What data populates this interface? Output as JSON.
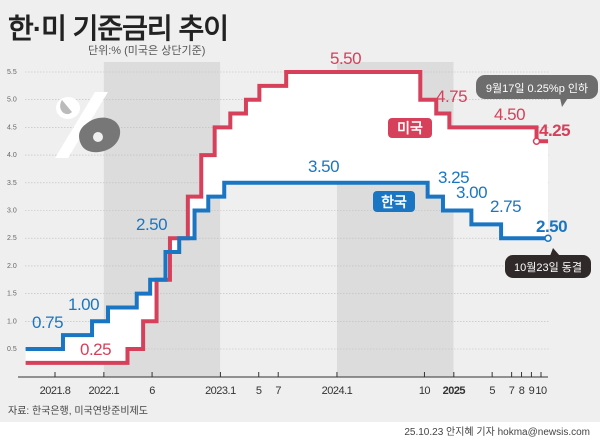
{
  "title": "한·미 기준금리 추이",
  "subtitle": "단위:% (미국은 상단기준)",
  "source": "자료: 한국은행, 미국연방준비제도",
  "credit": "25.10.23 안지혜 기자 hokma@newsis.com",
  "decor_icon": "percent-icon",
  "colors": {
    "korea": "#1a76c2",
    "us": "#d6405a",
    "background": "#efefef",
    "shade": "#dcdcdc"
  },
  "chart_data": {
    "type": "line",
    "step": true,
    "ylim": [
      0,
      5.5
    ],
    "yticks": [
      "0.5",
      "1.0",
      "1.5",
      "2.0",
      "2.5",
      "3.0",
      "3.5",
      "4.0",
      "4.5",
      "5.0",
      "5.5"
    ],
    "xticks": [
      {
        "label": "2021.8",
        "date": "2021-08-01"
      },
      {
        "label": "2022.1",
        "date": "2022-01-01"
      },
      {
        "label": "6",
        "date": "2022-06-01"
      },
      {
        "label": "2023.1",
        "date": "2023-01-01"
      },
      {
        "label": "5",
        "date": "2023-05-01"
      },
      {
        "label": "7",
        "date": "2023-07-01"
      },
      {
        "label": "2024.1",
        "date": "2024-01-01"
      },
      {
        "label": "10",
        "date": "2024-10-01"
      },
      {
        "label": "2025",
        "date": "2025-01-01",
        "bold": true
      },
      {
        "label": "5",
        "date": "2025-05-01"
      },
      {
        "label": "7",
        "date": "2025-07-01"
      },
      {
        "label": "8",
        "date": "2025-08-01"
      },
      {
        "label": "9",
        "date": "2025-09-01"
      },
      {
        "label": "10",
        "date": "2025-10-01"
      }
    ],
    "shaded_years": [
      [
        "2022-01-01",
        "2022-12-31"
      ],
      [
        "2024-01-01",
        "2024-12-31"
      ]
    ],
    "grid": true,
    "series": [
      {
        "name": "미국",
        "color": "#d6405a",
        "points": [
          [
            "2021-05-01",
            0.25
          ],
          [
            "2022-03-16",
            0.5
          ],
          [
            "2022-05-04",
            1.0
          ],
          [
            "2022-06-15",
            1.75
          ],
          [
            "2022-07-27",
            2.5
          ],
          [
            "2022-09-21",
            3.25
          ],
          [
            "2022-11-02",
            4.0
          ],
          [
            "2022-12-14",
            4.5
          ],
          [
            "2023-02-01",
            4.75
          ],
          [
            "2023-03-22",
            5.0
          ],
          [
            "2023-05-03",
            5.25
          ],
          [
            "2023-07-26",
            5.5
          ],
          [
            "2024-09-18",
            5.0
          ],
          [
            "2024-11-07",
            4.75
          ],
          [
            "2024-12-18",
            4.5
          ],
          [
            "2025-09-17",
            4.25
          ],
          [
            "2025-10-23",
            4.25
          ]
        ]
      },
      {
        "name": "한국",
        "color": "#1a76c2",
        "points": [
          [
            "2021-05-01",
            0.5
          ],
          [
            "2021-08-26",
            0.75
          ],
          [
            "2021-11-25",
            1.0
          ],
          [
            "2022-01-14",
            1.25
          ],
          [
            "2022-04-14",
            1.5
          ],
          [
            "2022-05-26",
            1.75
          ],
          [
            "2022-07-13",
            2.25
          ],
          [
            "2022-08-25",
            2.5
          ],
          [
            "2022-10-12",
            3.0
          ],
          [
            "2022-11-24",
            3.25
          ],
          [
            "2023-01-13",
            3.5
          ],
          [
            "2024-10-11",
            3.25
          ],
          [
            "2024-11-28",
            3.0
          ],
          [
            "2025-02-25",
            2.75
          ],
          [
            "2025-05-29",
            2.5
          ],
          [
            "2025-10-23",
            2.5
          ]
        ]
      }
    ],
    "data_labels": {
      "korea": [
        "0.75",
        "1.00",
        "2.50",
        "3.50",
        "3.25",
        "3.00",
        "2.75",
        "2.50"
      ],
      "us": [
        "0.25",
        "5.50",
        "4.75",
        "4.50",
        "4.25"
      ]
    },
    "annotations": {
      "us_cut": "9월17일 0.25%p 인하",
      "korea_hold": "10월23일 동결"
    }
  }
}
